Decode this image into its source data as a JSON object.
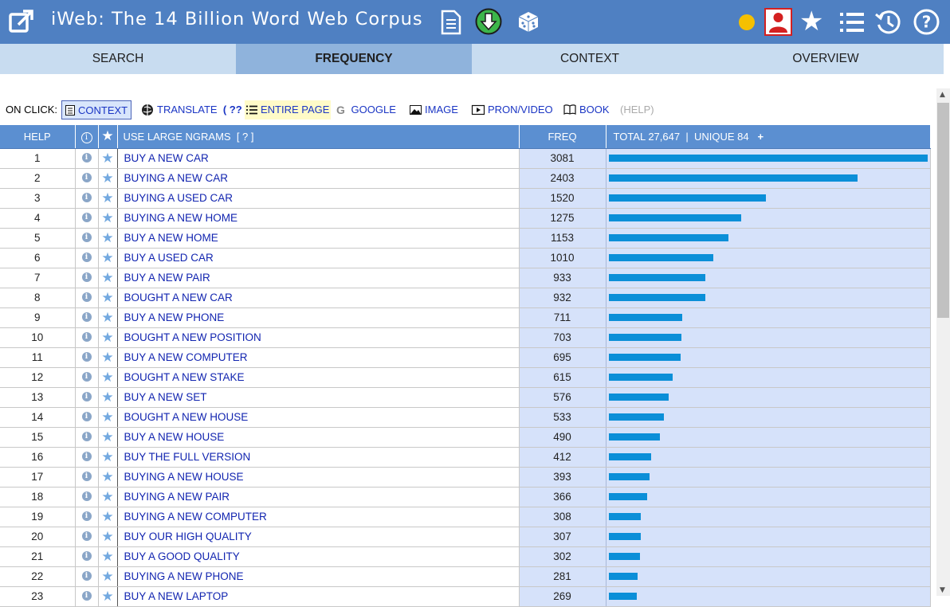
{
  "header": {
    "title": "iWeb: The 14 Billion Word Web Corpus",
    "icons": [
      "external-link-icon",
      "document-icon",
      "download-icon",
      "dice-icon",
      "status-dot-icon",
      "user-icon",
      "star-icon",
      "list-icon",
      "history-icon",
      "help-icon"
    ],
    "accent": "#4f80c2"
  },
  "tabs": [
    {
      "label": "SEARCH",
      "active": false
    },
    {
      "label": "FREQUENCY",
      "active": true
    },
    {
      "label": "CONTEXT",
      "active": false
    },
    {
      "label": "OVERVIEW",
      "active": false
    }
  ],
  "onclick": {
    "label": "ON CLICK:",
    "context": "CONTEXT",
    "translate": "TRANSLATE",
    "translate_hint": "( ?? )",
    "entire_page": "ENTIRE PAGE",
    "google": "GOOGLE",
    "image": "IMAGE",
    "pron_video": "PRON/VIDEO",
    "book": "BOOK",
    "help": "(HELP)"
  },
  "table": {
    "header_help": "HELP",
    "header_ngram": "USE LARGE NGRAMS",
    "header_ngram_hint": "[ ? ]",
    "header_freq": "FREQ",
    "header_total": "TOTAL 27,647",
    "header_sep": "|",
    "header_unique": "UNIQUE 84",
    "header_plus": "+",
    "max_freq": 3081,
    "rows": [
      {
        "n": "1",
        "ngram": "BUY A NEW CAR",
        "freq": 3081
      },
      {
        "n": "2",
        "ngram": "BUYING A NEW CAR",
        "freq": 2403
      },
      {
        "n": "3",
        "ngram": "BUYING A USED CAR",
        "freq": 1520
      },
      {
        "n": "4",
        "ngram": "BUYING A NEW HOME",
        "freq": 1275
      },
      {
        "n": "5",
        "ngram": "BUY A NEW HOME",
        "freq": 1153
      },
      {
        "n": "6",
        "ngram": "BUY A USED CAR",
        "freq": 1010
      },
      {
        "n": "7",
        "ngram": "BUY A NEW PAIR",
        "freq": 933
      },
      {
        "n": "8",
        "ngram": "BOUGHT A NEW CAR",
        "freq": 932
      },
      {
        "n": "9",
        "ngram": "BUY A NEW PHONE",
        "freq": 711
      },
      {
        "n": "10",
        "ngram": "BOUGHT A NEW POSITION",
        "freq": 703
      },
      {
        "n": "11",
        "ngram": "BUY A NEW COMPUTER",
        "freq": 695
      },
      {
        "n": "12",
        "ngram": "BOUGHT A NEW STAKE",
        "freq": 615
      },
      {
        "n": "13",
        "ngram": "BUY A NEW SET",
        "freq": 576
      },
      {
        "n": "14",
        "ngram": "BOUGHT A NEW HOUSE",
        "freq": 533
      },
      {
        "n": "15",
        "ngram": "BUY A NEW HOUSE",
        "freq": 490
      },
      {
        "n": "16",
        "ngram": "BUY THE FULL VERSION",
        "freq": 412
      },
      {
        "n": "17",
        "ngram": "BUYING A NEW HOUSE",
        "freq": 393
      },
      {
        "n": "18",
        "ngram": "BUYING A NEW PAIR",
        "freq": 366
      },
      {
        "n": "19",
        "ngram": "BUYING A NEW COMPUTER",
        "freq": 308
      },
      {
        "n": "20",
        "ngram": "BUY OUR HIGH QUALITY",
        "freq": 307
      },
      {
        "n": "21",
        "ngram": "BUY A GOOD QUALITY",
        "freq": 302
      },
      {
        "n": "22",
        "ngram": "BUYING A NEW PHONE",
        "freq": 281
      },
      {
        "n": "23",
        "ngram": "BUY A NEW LAPTOP",
        "freq": 269
      }
    ]
  }
}
